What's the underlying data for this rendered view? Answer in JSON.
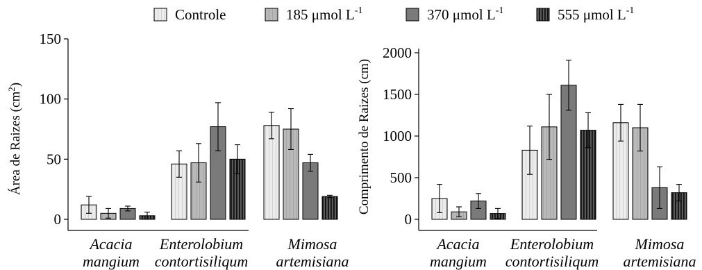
{
  "legend": {
    "placement": "top-center",
    "entries": [
      {
        "label": "Controle",
        "unit": "",
        "sup": "",
        "pattern": "pat-controle"
      },
      {
        "label": "185 ",
        "unit": "μmol L",
        "sup": "-1",
        "pattern": "pat-185"
      },
      {
        "label": "370 ",
        "unit": "μmol L",
        "sup": "-1",
        "pattern": "pat-370"
      },
      {
        "label": "555 ",
        "unit": "μmol L",
        "sup": "-1",
        "pattern": "pat-555"
      }
    ]
  },
  "chart_data": [
    {
      "type": "bar",
      "ylabel_main": "Área de Raizes (cm",
      "ylabel_sup": "2",
      "ylabel_end": ")",
      "ylim": [
        0,
        150
      ],
      "yticks": [
        "0",
        "50",
        "100",
        "150"
      ],
      "grid": false,
      "categories": [
        {
          "line1": "Acacia",
          "line2": "mangium"
        },
        {
          "line1": "Enterolobium",
          "line2": "contortisiliqum"
        },
        {
          "line1": "Mimosa",
          "line2": "artemisiana"
        }
      ],
      "series": [
        {
          "values": [
            12,
            46,
            78
          ],
          "errors": [
            7,
            11,
            11
          ]
        },
        {
          "values": [
            5,
            47,
            75
          ],
          "errors": [
            4,
            16,
            17
          ]
        },
        {
          "values": [
            9,
            77,
            47
          ],
          "errors": [
            2,
            20,
            7
          ]
        },
        {
          "values": [
            3,
            50,
            19
          ],
          "errors": [
            3,
            12,
            1
          ]
        }
      ]
    },
    {
      "type": "bar",
      "ylabel_main": "Comprimento de Raizes (cm)",
      "ylabel_sup": "",
      "ylabel_end": "",
      "ylim": [
        0,
        2000
      ],
      "yticks": [
        "0",
        "500",
        "1000",
        "1500",
        "2000"
      ],
      "grid": false,
      "categories": [
        {
          "line1": "Acacia",
          "line2": "mangium"
        },
        {
          "line1": "Enterolobium",
          "line2": "contortisiliqum"
        },
        {
          "line1": "Mimosa",
          "line2": "artemisiana"
        }
      ],
      "series": [
        {
          "values": [
            250,
            830,
            1160
          ],
          "errors": [
            170,
            290,
            220
          ]
        },
        {
          "values": [
            90,
            1110,
            1100
          ],
          "errors": [
            60,
            390,
            280
          ]
        },
        {
          "values": [
            220,
            1610,
            380
          ],
          "errors": [
            90,
            300,
            250
          ]
        },
        {
          "values": [
            70,
            1070,
            320
          ],
          "errors": [
            60,
            210,
            100
          ]
        }
      ]
    }
  ]
}
